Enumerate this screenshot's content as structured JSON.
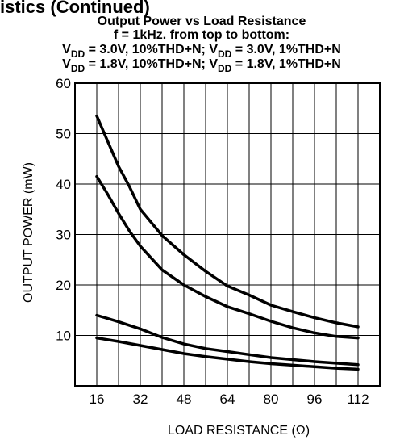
{
  "header": {
    "section_fragment": "istics (Continued)",
    "title": "Output Power vs Load Resistance",
    "subtitle": "f = 1kHz. from top to bottom:",
    "legend_line1": [
      {
        "text": "V",
        "sub": "DD",
        "rest": " = 3.0V, 10%THD+N; "
      },
      {
        "text": "V",
        "sub": "DD",
        "rest": " = 3.0V, 1%THD+N"
      }
    ],
    "legend_line2": [
      {
        "text": "V",
        "sub": "DD",
        "rest": " = 1.8V, 10%THD+N; "
      },
      {
        "text": "V",
        "sub": "DD",
        "rest": " = 1.8V, 1%THD+N"
      }
    ]
  },
  "chart_data": {
    "type": "line",
    "title": "Output Power vs Load Resistance",
    "xlabel": "LOAD RESISTANCE (Ω)",
    "ylabel": "OUTPUT POWER (mW)",
    "xlim": [
      8,
      120
    ],
    "ylim": [
      0,
      60
    ],
    "x_ticks": [
      16,
      32,
      48,
      64,
      80,
      96,
      112
    ],
    "y_ticks": [
      10,
      20,
      30,
      40,
      50,
      60
    ],
    "grid": true,
    "series": [
      {
        "name": "VDD = 3.0V, 10%THD+N",
        "x": [
          16,
          20,
          24,
          28,
          32,
          40,
          48,
          56,
          64,
          72,
          80,
          88,
          96,
          104,
          112
        ],
        "y": [
          53.5,
          48.5,
          43.5,
          39.5,
          35,
          29.8,
          26,
          22.7,
          19.8,
          18,
          16,
          14.7,
          13.5,
          12.5,
          11.7
        ]
      },
      {
        "name": "VDD = 3.0V, 1%THD+N",
        "x": [
          16,
          20,
          24,
          28,
          32,
          40,
          48,
          56,
          64,
          72,
          80,
          88,
          96,
          104,
          112
        ],
        "y": [
          41.5,
          38,
          34.2,
          30.7,
          27.7,
          23,
          20,
          17.7,
          15.7,
          14.3,
          12.8,
          11.5,
          10.5,
          9.8,
          9.5
        ]
      },
      {
        "name": "VDD = 1.8V, 10%THD+N",
        "x": [
          16,
          24,
          32,
          40,
          48,
          56,
          64,
          72,
          80,
          88,
          96,
          104,
          112
        ],
        "y": [
          14,
          12.7,
          11.3,
          9.6,
          8.3,
          7.4,
          6.8,
          6.2,
          5.6,
          5.2,
          4.8,
          4.5,
          4.2
        ]
      },
      {
        "name": "VDD = 1.8V, 1%THD+N",
        "x": [
          16,
          24,
          32,
          40,
          48,
          56,
          64,
          72,
          80,
          88,
          96,
          104,
          112
        ],
        "y": [
          9.5,
          8.8,
          8,
          7.2,
          6.4,
          5.8,
          5.3,
          4.8,
          4.4,
          4.1,
          3.8,
          3.5,
          3.3
        ]
      }
    ]
  }
}
